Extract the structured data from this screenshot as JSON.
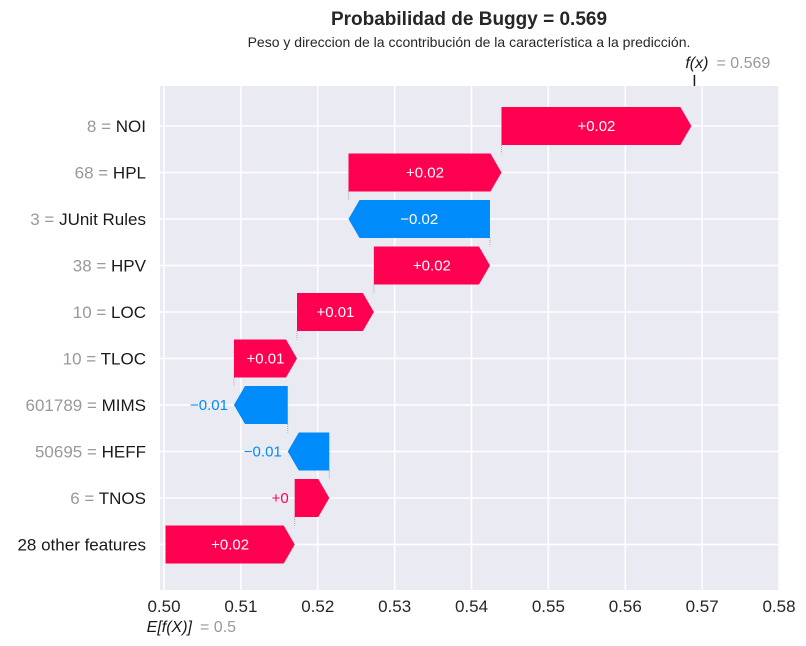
{
  "chart_data": {
    "type": "waterfall",
    "title": "Probabilidad de Buggy = 0.569",
    "subtitle": "Peso y direccion de la ccontribución de la característica a la predicción.",
    "fx_label": "f(x)",
    "fx_value": "= 0.569",
    "fx": 0.569,
    "ex_label": "E[f(X)]",
    "ex_value": "= 0.5",
    "base_value": 0.5,
    "xlim": [
      0.5,
      0.58
    ],
    "x_ticks": [
      0.5,
      0.51,
      0.52,
      0.53,
      0.54,
      0.55,
      0.56,
      0.57,
      0.58
    ],
    "x_tick_labels": [
      "0.50",
      "0.51",
      "0.52",
      "0.53",
      "0.54",
      "0.55",
      "0.56",
      "0.57",
      "0.58"
    ],
    "grid": true,
    "rows": [
      {
        "value_text": "8 =",
        "feature": "NOI",
        "start": 0.5439,
        "end": 0.5686,
        "label": "+0.02"
      },
      {
        "value_text": "68 =",
        "feature": "HPL",
        "start": 0.524,
        "end": 0.5439,
        "label": "+0.02"
      },
      {
        "value_text": "3 =",
        "feature": "JUnit Rules",
        "start": 0.5424,
        "end": 0.524,
        "label": "−0.02"
      },
      {
        "value_text": "38 =",
        "feature": "HPV",
        "start": 0.5273,
        "end": 0.5424,
        "label": "+0.02"
      },
      {
        "value_text": "10 =",
        "feature": "LOC",
        "start": 0.5173,
        "end": 0.5273,
        "label": "+0.01"
      },
      {
        "value_text": "10 =",
        "feature": "TLOC",
        "start": 0.5091,
        "end": 0.5173,
        "label": "+0.01"
      },
      {
        "value_text": "601789 =",
        "feature": "MIMS",
        "start": 0.5161,
        "end": 0.5091,
        "label": "−0.01"
      },
      {
        "value_text": "50695 =",
        "feature": "HEFF",
        "start": 0.5215,
        "end": 0.5161,
        "label": "−0.01"
      },
      {
        "value_text": "6 =",
        "feature": "TNOS",
        "start": 0.517,
        "end": 0.5215,
        "label": "+0"
      },
      {
        "value_text": "",
        "feature": "28 other features",
        "start": 0.5002,
        "end": 0.517,
        "label": "+0.02"
      }
    ],
    "colors": {
      "positive": "#ff0051",
      "negative": "#008bfb",
      "background": "#eaeaf2",
      "grid": "#ffffff",
      "muted_text": "#999999",
      "text": "#1a1a1a"
    }
  }
}
